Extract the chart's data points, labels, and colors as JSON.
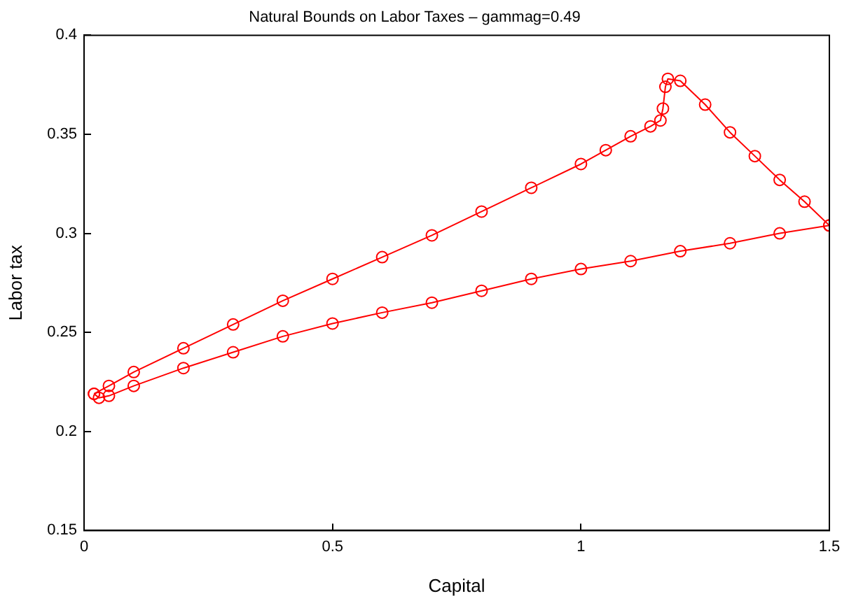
{
  "chart_data": {
    "type": "line",
    "title": "Natural Bounds on Labor Taxes – gammag=0.49",
    "xlabel": "Capital",
    "ylabel": "Labor tax",
    "xlim": [
      0,
      1.5
    ],
    "xticks": [
      0,
      0.5,
      1,
      1.5
    ],
    "ylim": [
      0.15,
      0.4
    ],
    "yticks": [
      0.15,
      0.2,
      0.25,
      0.3,
      0.35,
      0.4
    ],
    "grid": false,
    "legend": false,
    "marker": "circle",
    "line_style": "solid",
    "series": [
      {
        "color": "#ff0000",
        "x": [
          0.02,
          0.05,
          0.1,
          0.2,
          0.3,
          0.4,
          0.5,
          0.6,
          0.7,
          0.8,
          0.9,
          1.0,
          1.05,
          1.1,
          1.14,
          1.16,
          1.165,
          1.17,
          1.175,
          1.2,
          1.25,
          1.3,
          1.35,
          1.4,
          1.45,
          1.5
        ],
        "values": [
          0.219,
          0.223,
          0.23,
          0.242,
          0.254,
          0.266,
          0.277,
          0.288,
          0.299,
          0.311,
          0.323,
          0.335,
          0.342,
          0.349,
          0.354,
          0.357,
          0.363,
          0.374,
          0.378,
          0.377,
          0.365,
          0.351,
          0.339,
          0.327,
          0.316,
          0.304
        ]
      },
      {
        "color": "#ff0000",
        "x": [
          0.02,
          0.03,
          0.05,
          0.1,
          0.2,
          0.3,
          0.4,
          0.5,
          0.6,
          0.7,
          0.8,
          0.9,
          1.0,
          1.1,
          1.2,
          1.3,
          1.4,
          1.5
        ],
        "values": [
          0.219,
          0.217,
          0.218,
          0.223,
          0.232,
          0.24,
          0.248,
          0.2545,
          0.26,
          0.265,
          0.271,
          0.277,
          0.282,
          0.286,
          0.291,
          0.295,
          0.3,
          0.304
        ]
      }
    ]
  }
}
